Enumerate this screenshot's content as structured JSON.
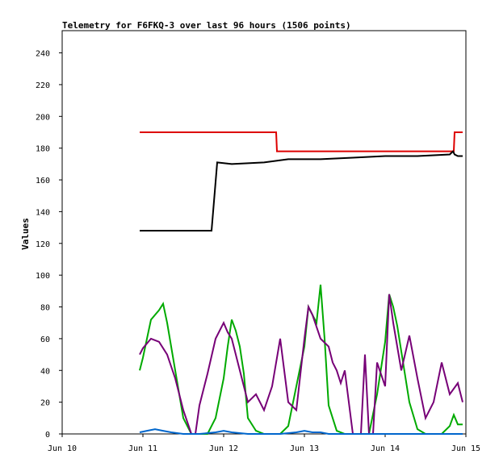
{
  "chart_data": {
    "type": "line",
    "title": "Telemetry for F6FKQ-3 over last 96 hours (1506 points)",
    "ylabel": "Values",
    "xlabel": "",
    "ylim": [
      0,
      254
    ],
    "xlim": [
      0,
      5
    ],
    "grid": false,
    "y_ticks": [
      0,
      20,
      40,
      60,
      80,
      100,
      120,
      140,
      160,
      180,
      200,
      220,
      240
    ],
    "x_ticks": [
      {
        "value": 0,
        "label": "Jun 10"
      },
      {
        "value": 1,
        "label": "Jun 11"
      },
      {
        "value": 2,
        "label": "Jun 12"
      },
      {
        "value": 3,
        "label": "Jun 13"
      },
      {
        "value": 4,
        "label": "Jun 14"
      },
      {
        "value": 5,
        "label": "Jun 15"
      }
    ],
    "series": [
      {
        "color": "#dd0000",
        "x": [
          0.96,
          2.65,
          2.66,
          4.85,
          4.86,
          4.96
        ],
        "y": [
          190,
          190,
          178,
          178,
          190,
          190
        ]
      },
      {
        "color": "#000000",
        "x": [
          0.96,
          1.85,
          1.92,
          2.1,
          2.5,
          2.8,
          3.2,
          3.6,
          4.0,
          4.4,
          4.8,
          4.84,
          4.86,
          4.9,
          4.96
        ],
        "y": [
          128,
          128,
          171,
          170,
          171,
          173,
          173,
          174,
          175,
          175,
          176,
          178,
          176,
          175,
          175
        ]
      },
      {
        "color": "#00aa00",
        "x": [
          0.96,
          1.0,
          1.1,
          1.2,
          1.25,
          1.3,
          1.4,
          1.5,
          1.6,
          1.7,
          1.8,
          1.9,
          2.0,
          2.05,
          2.1,
          2.15,
          2.2,
          2.25,
          2.3,
          2.4,
          2.5,
          2.6,
          2.7,
          2.8,
          2.9,
          3.0,
          3.05,
          3.1,
          3.15,
          3.2,
          3.25,
          3.3,
          3.4,
          3.5,
          3.6,
          3.7,
          3.8,
          3.9,
          4.0,
          4.05,
          4.1,
          4.15,
          4.2,
          4.3,
          4.4,
          4.5,
          4.6,
          4.7,
          4.8,
          4.85,
          4.9,
          4.96
        ],
        "y": [
          40,
          48,
          72,
          78,
          82,
          70,
          40,
          10,
          0,
          0,
          0,
          10,
          35,
          55,
          72,
          65,
          55,
          38,
          10,
          2,
          0,
          0,
          0,
          5,
          30,
          55,
          80,
          75,
          70,
          94,
          60,
          18,
          2,
          0,
          0,
          0,
          0,
          25,
          58,
          88,
          80,
          68,
          52,
          20,
          3,
          0,
          0,
          0,
          5,
          12,
          6,
          6
        ]
      },
      {
        "color": "#770077",
        "x": [
          0.96,
          1.0,
          1.1,
          1.2,
          1.3,
          1.4,
          1.5,
          1.6,
          1.65,
          1.7,
          1.8,
          1.9,
          2.0,
          2.05,
          2.1,
          2.2,
          2.3,
          2.4,
          2.5,
          2.6,
          2.7,
          2.8,
          2.9,
          3.0,
          3.05,
          3.1,
          3.2,
          3.3,
          3.35,
          3.4,
          3.45,
          3.5,
          3.6,
          3.7,
          3.75,
          3.8,
          3.85,
          3.9,
          4.0,
          4.05,
          4.1,
          4.2,
          4.3,
          4.4,
          4.5,
          4.6,
          4.7,
          4.8,
          4.9,
          4.96
        ],
        "y": [
          50,
          54,
          60,
          58,
          50,
          35,
          15,
          0,
          0,
          18,
          38,
          60,
          70,
          64,
          60,
          40,
          20,
          25,
          15,
          30,
          60,
          20,
          15,
          60,
          80,
          75,
          60,
          55,
          45,
          40,
          32,
          40,
          0,
          0,
          50,
          0,
          0,
          45,
          30,
          88,
          70,
          40,
          62,
          35,
          10,
          20,
          45,
          25,
          32,
          20
        ]
      },
      {
        "color": "#0066cc",
        "x": [
          0.96,
          1.05,
          1.15,
          1.25,
          1.35,
          1.5,
          1.7,
          1.9,
          2.0,
          2.1,
          2.3,
          2.5,
          2.7,
          2.9,
          3.0,
          3.1,
          3.2,
          3.3,
          3.5,
          3.7,
          3.9,
          4.1,
          4.3,
          4.5,
          4.7,
          4.9,
          4.96
        ],
        "y": [
          1,
          2,
          3,
          2,
          1,
          0,
          0,
          1,
          2,
          1,
          0,
          0,
          0,
          1,
          2,
          1,
          1,
          0,
          0,
          0,
          0,
          0,
          0,
          0,
          0,
          0,
          0
        ]
      }
    ]
  }
}
